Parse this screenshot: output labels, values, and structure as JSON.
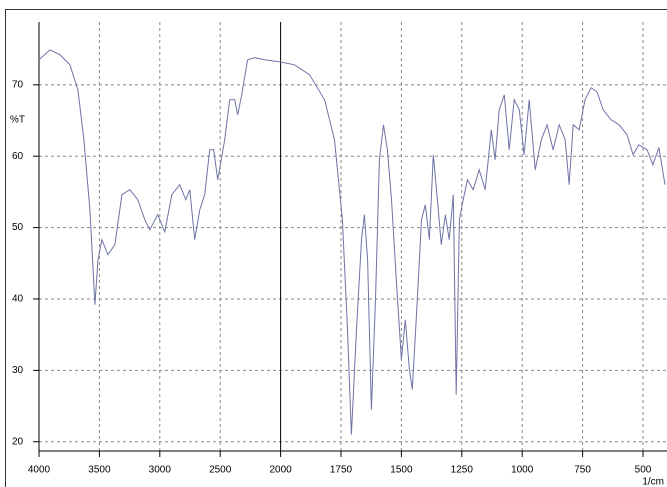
{
  "chart_data": {
    "type": "line",
    "y_label": "%T",
    "x_label": "1/cm",
    "xlim": [
      4000,
      400
    ],
    "ylim": [
      18.7,
      78.8
    ],
    "xticks": [
      4000,
      3500,
      3000,
      2500,
      2000,
      1750,
      1500,
      1250,
      1000,
      750,
      500
    ],
    "yticks": [
      20,
      30,
      40,
      50,
      60,
      70
    ],
    "grid": true,
    "cursor_x": 2000,
    "series": [
      {
        "color": "#6f73a6",
        "x": [
          4000,
          3909,
          3826,
          3744,
          3678,
          3628,
          3579,
          3537,
          3512,
          3479,
          3430,
          3372,
          3314,
          3248,
          3182,
          3124,
          3083,
          3017,
          2959,
          2901,
          2835,
          2785,
          2752,
          2711,
          2669,
          2628,
          2587,
          2554,
          2521,
          2463,
          2421,
          2380,
          2355,
          2322,
          2273,
          2215,
          2132,
          2000,
          1942,
          1880,
          1818,
          1777,
          1744,
          1723,
          1707,
          1686,
          1665,
          1653,
          1640,
          1624,
          1607,
          1591,
          1574,
          1558,
          1541,
          1521,
          1500,
          1484,
          1467,
          1455,
          1434,
          1417,
          1401,
          1384,
          1368,
          1351,
          1335,
          1318,
          1302,
          1285,
          1273,
          1260,
          1244,
          1227,
          1203,
          1178,
          1153,
          1128,
          1112,
          1095,
          1074,
          1054,
          1033,
          1012,
          992,
          971,
          946,
          921,
          897,
          872,
          847,
          822,
          806,
          789,
          764,
          740,
          715,
          690,
          665,
          632,
          599,
          566,
          541,
          517,
          483,
          459,
          434,
          409
        ],
        "values": [
          73.5,
          74.9,
          74.2,
          72.8,
          69.3,
          62.3,
          52.5,
          39.2,
          45.5,
          48.3,
          46.2,
          47.6,
          54.6,
          55.3,
          53.9,
          51.1,
          49.7,
          51.8,
          49.4,
          54.6,
          56.0,
          53.9,
          55.3,
          48.3,
          52.5,
          54.6,
          60.9,
          60.9,
          56.7,
          62.3,
          67.9,
          67.9,
          65.8,
          68.6,
          73.5,
          73.8,
          73.5,
          73.2,
          72.8,
          71.4,
          67.9,
          62.3,
          51.1,
          35.7,
          21.0,
          35.7,
          48.3,
          51.8,
          45.5,
          24.5,
          39.9,
          59.5,
          64.4,
          60.9,
          53.9,
          42.7,
          31.5,
          37.1,
          30.1,
          27.3,
          39.9,
          51.1,
          53.2,
          48.3,
          60.2,
          53.9,
          47.6,
          51.8,
          48.3,
          54.6,
          26.6,
          51.1,
          53.9,
          56.7,
          55.3,
          58.1,
          55.3,
          63.7,
          59.5,
          66.5,
          68.6,
          60.9,
          67.9,
          66.5,
          60.2,
          67.9,
          58.1,
          62.3,
          64.4,
          60.9,
          64.4,
          62.3,
          56.0,
          64.4,
          63.7,
          67.9,
          69.6,
          69.0,
          66.5,
          65.1,
          64.4,
          63.0,
          60.2,
          61.6,
          60.9,
          58.8,
          61.2,
          56.0
        ]
      }
    ]
  }
}
